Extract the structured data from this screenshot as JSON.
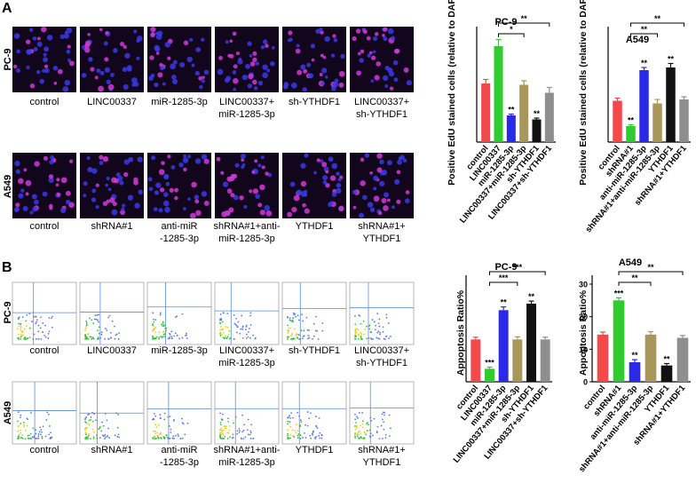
{
  "panel_a": {
    "label": "A",
    "rows": [
      {
        "name": "PC-9",
        "captions": [
          [
            "control"
          ],
          [
            "LINC00337"
          ],
          [
            "miR-1285-3p"
          ],
          [
            "LINC00337+",
            "miR-1285-3p"
          ],
          [
            "sh-YTHDF1"
          ],
          [
            "LINC00337+",
            "sh-YTHDF1"
          ]
        ]
      },
      {
        "name": "A549",
        "captions": [
          [
            "control"
          ],
          [
            "shRNA#1"
          ],
          [
            "anti-miR",
            "-1285-3p"
          ],
          [
            "shRNA#1+anti-",
            "miR-1285-3p"
          ],
          [
            "YTHDF1"
          ],
          [
            "shRNA#1+",
            "YTHDF1"
          ]
        ]
      }
    ]
  },
  "panel_b": {
    "label": "B",
    "rows": [
      {
        "name": "PC-9",
        "captions": [
          [
            "control"
          ],
          [
            "LINC00337"
          ],
          [
            "miR-1285-3p"
          ],
          [
            "LINC00337+",
            "miR-1285-3p"
          ],
          [
            "sh-YTHDF1"
          ],
          [
            "LINC00337+",
            "sh-YTHDF1"
          ]
        ]
      },
      {
        "name": "A549",
        "captions": [
          [
            "control"
          ],
          [
            "shRNA#1"
          ],
          [
            "anti-miR",
            "-1285-3p"
          ],
          [
            "shRNA#1+anti-",
            "miR-1285-3p"
          ],
          [
            "YTHDF1"
          ],
          [
            "shRNA#1+",
            "YTHDF1"
          ]
        ]
      }
    ]
  },
  "chart_data": [
    {
      "type": "bar",
      "title": "PC-9",
      "y_label": "Positive EdU stained cells (relative to DAPI)",
      "categories": [
        "control",
        "LINC00337",
        "miR-1285-3p",
        "LINC00337+miR-1285-3p",
        "sh-YTHDF1",
        "LINC00337+sh-YTHDF1"
      ],
      "values": [
        0.44,
        0.72,
        0.2,
        0.43,
        0.17,
        0.37
      ],
      "errors": [
        0.03,
        0.05,
        0.01,
        0.03,
        0.01,
        0.04
      ],
      "colors": [
        "#f24a4a",
        "#2ecc2e",
        "#2a2ae6",
        "#a8965a",
        "#111111",
        "#8e8e8e"
      ],
      "ylim": [
        0,
        0.8
      ],
      "bar_marks": [
        null,
        null,
        "**",
        null,
        "**",
        null
      ],
      "brackets": [
        {
          "from": 1,
          "to": 3,
          "label": "*"
        },
        {
          "from": 1,
          "to": 5,
          "label": "**"
        }
      ]
    },
    {
      "type": "bar",
      "title": "A549",
      "y_label": "Positive EdU stained cells (relative to DAPI)",
      "categories": [
        "control",
        "shRNA#1",
        "anti-miR-1285-3p",
        "shRNA#1+anti-miR-1285-3p",
        "YTHDF1",
        "shRNA#1+YTHDF1"
      ],
      "values": [
        0.31,
        0.12,
        0.54,
        0.29,
        0.56,
        0.32
      ],
      "errors": [
        0.02,
        0.01,
        0.02,
        0.03,
        0.03,
        0.02
      ],
      "colors": [
        "#f24a4a",
        "#2ecc2e",
        "#2a2ae6",
        "#a8965a",
        "#111111",
        "#8e8e8e"
      ],
      "ylim": [
        0,
        0.8
      ],
      "bar_marks": [
        null,
        "**",
        "**",
        null,
        "**",
        null
      ],
      "brackets": [
        {
          "from": 1,
          "to": 3,
          "label": "**"
        },
        {
          "from": 1,
          "to": 5,
          "label": "**"
        }
      ]
    },
    {
      "type": "bar",
      "title": "PC-9",
      "y_label": "Appoptosis Ratio%",
      "categories": [
        "control",
        "LINC00337",
        "miR-1285-3p",
        "LINC00337+miR-1285-3p",
        "sh-YTHDF1",
        "LINC00337+sh-YTHDF1"
      ],
      "values": [
        13,
        4,
        22,
        13,
        24,
        13
      ],
      "errors": [
        0.7,
        0.5,
        1,
        0.8,
        0.8,
        0.7
      ],
      "colors": [
        "#f24a4a",
        "#2ecc2e",
        "#2a2ae6",
        "#a8965a",
        "#111111",
        "#8e8e8e"
      ],
      "ylim": [
        0,
        30
      ],
      "bar_marks": [
        null,
        "***",
        "**",
        null,
        "**",
        null
      ],
      "brackets": [
        {
          "from": 1,
          "to": 3,
          "label": "***"
        },
        {
          "from": 1,
          "to": 5,
          "label": "***"
        }
      ]
    },
    {
      "type": "bar",
      "title": "A549",
      "y_label": "Appoptosis Ratio%",
      "categories": [
        "control",
        "shRNA#1",
        "anti-miR-1285-3p",
        "shRNA#1+anti-miR-1285-3p",
        "YTHDF1",
        "shRNA#1+YTHDF1"
      ],
      "values": [
        14.5,
        25,
        6,
        14.5,
        5,
        13.5
      ],
      "errors": [
        0.8,
        0.8,
        0.8,
        0.9,
        0.6,
        0.7
      ],
      "colors": [
        "#f24a4a",
        "#2ecc2e",
        "#2a2ae6",
        "#a8965a",
        "#111111",
        "#8e8e8e"
      ],
      "ylim": [
        0,
        30
      ],
      "yticks": [
        0,
        10,
        20,
        30
      ],
      "bar_marks": [
        null,
        "***",
        "**",
        null,
        "**",
        null
      ],
      "brackets": [
        {
          "from": 1,
          "to": 3,
          "label": "**"
        },
        {
          "from": 1,
          "to": 5,
          "label": "**"
        }
      ]
    }
  ]
}
